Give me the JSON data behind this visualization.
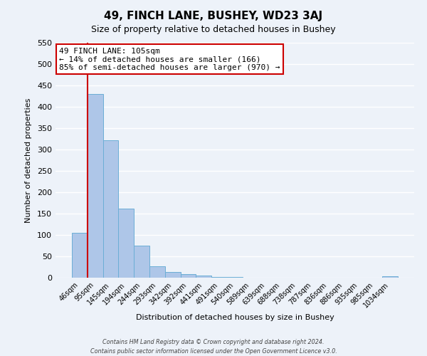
{
  "title": "49, FINCH LANE, BUSHEY, WD23 3AJ",
  "subtitle": "Size of property relative to detached houses in Bushey",
  "xlabel": "Distribution of detached houses by size in Bushey",
  "ylabel": "Number of detached properties",
  "bin_labels": [
    "46sqm",
    "95sqm",
    "145sqm",
    "194sqm",
    "244sqm",
    "293sqm",
    "342sqm",
    "392sqm",
    "441sqm",
    "491sqm",
    "540sqm",
    "589sqm",
    "639sqm",
    "688sqm",
    "738sqm",
    "787sqm",
    "836sqm",
    "886sqm",
    "935sqm",
    "985sqm",
    "1034sqm"
  ],
  "bar_values": [
    105,
    430,
    322,
    162,
    75,
    27,
    14,
    8,
    5,
    2,
    1,
    0,
    0,
    0,
    0,
    0,
    0,
    0,
    0,
    0,
    4
  ],
  "bar_color": "#aec6e8",
  "bar_edge_color": "#6baed6",
  "ylim": [
    0,
    550
  ],
  "yticks": [
    0,
    50,
    100,
    150,
    200,
    250,
    300,
    350,
    400,
    450,
    500,
    550
  ],
  "annotation_title": "49 FINCH LANE: 105sqm",
  "annotation_line1": "← 14% of detached houses are smaller (166)",
  "annotation_line2": "85% of semi-detached houses are larger (970) →",
  "annotation_box_facecolor": "#ffffff",
  "annotation_box_edgecolor": "#cc0000",
  "property_line_color": "#cc0000",
  "property_line_x": 0.5,
  "footer1": "Contains HM Land Registry data © Crown copyright and database right 2024.",
  "footer2": "Contains public sector information licensed under the Open Government Licence v3.0.",
  "background_color": "#edf2f9",
  "grid_color": "#ffffff",
  "title_fontsize": 11,
  "subtitle_fontsize": 9,
  "axis_label_fontsize": 8,
  "tick_fontsize": 8,
  "xtick_fontsize": 7
}
